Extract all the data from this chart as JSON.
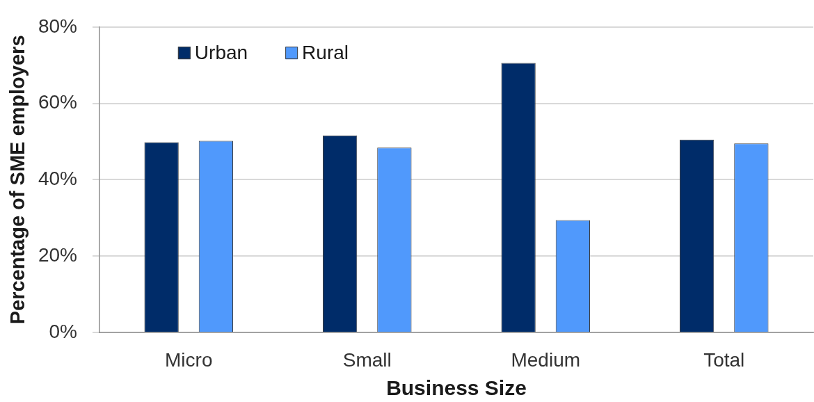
{
  "chart_data": {
    "type": "bar",
    "xlabel": "Business Size",
    "ylabel": "Percentage of SME employers",
    "categories": [
      "Micro",
      "Small",
      "Medium",
      "Total"
    ],
    "series": [
      {
        "name": "Urban",
        "color": "#002c69",
        "values": [
          49.8,
          51.6,
          70.6,
          50.5
        ]
      },
      {
        "name": "Rural",
        "color": "#5099fc",
        "values": [
          50.2,
          48.4,
          29.4,
          49.5
        ]
      }
    ],
    "ylim": [
      0,
      80
    ],
    "yticks": [
      {
        "value": 0,
        "label": "0%"
      },
      {
        "value": 20,
        "label": "20%"
      },
      {
        "value": 40,
        "label": "40%"
      },
      {
        "value": 60,
        "label": "60%"
      },
      {
        "value": 80,
        "label": "80%"
      }
    ],
    "grid": "y",
    "legend": "top left"
  }
}
